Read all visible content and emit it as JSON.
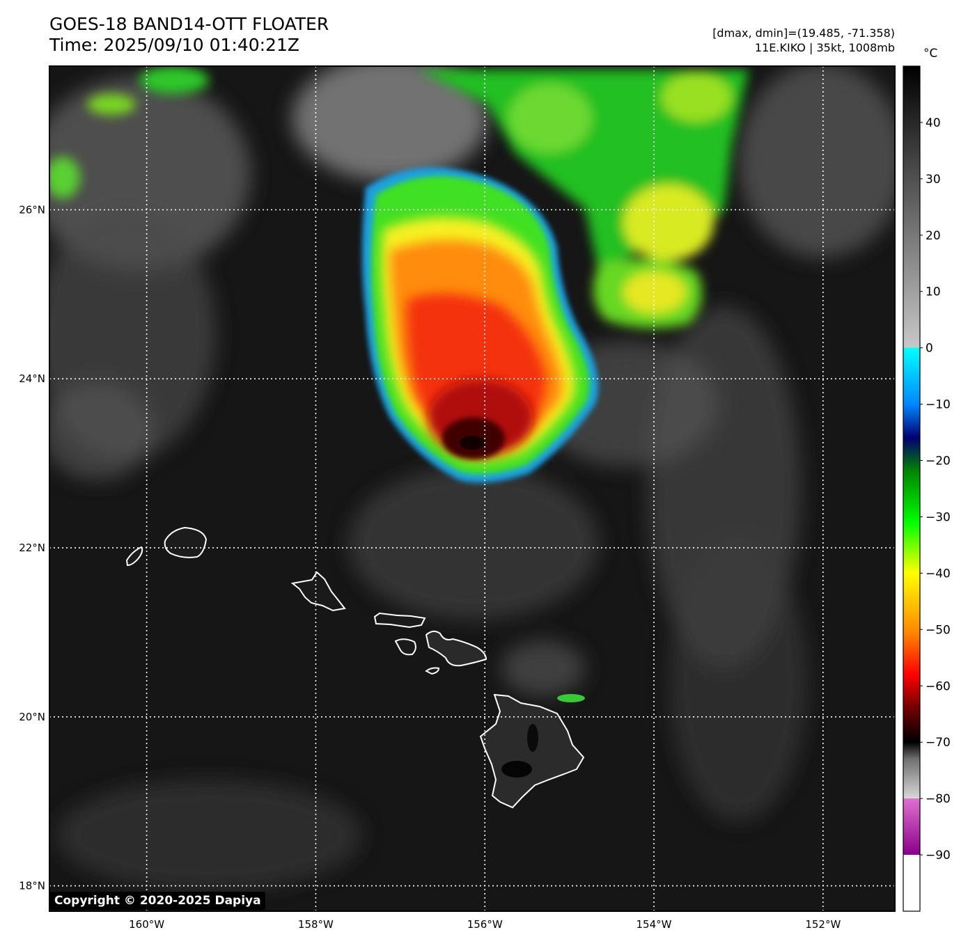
{
  "header": {
    "title_line1": "GOES-18 BAND14-OTT FLOATER",
    "title_line2": "Time: 2025/09/10 01:40:21Z",
    "info_line1": "[dmax, dmin]=(19.485, -71.358)",
    "info_line2": "11E.KIKO | 35kt, 1008mb"
  },
  "map": {
    "lon_range": [
      -161.15,
      -151.15
    ],
    "lat_range": [
      17.7,
      27.7
    ],
    "lon_ticks": [
      -160,
      -158,
      -156,
      -154,
      -152
    ],
    "lat_ticks": [
      18,
      20,
      22,
      24,
      26
    ],
    "lon_labels": [
      "160°W",
      "158°W",
      "156°W",
      "154°W",
      "152°W"
    ],
    "lat_labels": [
      "18°N",
      "20°N",
      "22°N",
      "24°N",
      "26°N"
    ],
    "grid": true
  },
  "colorbar": {
    "unit": "°C",
    "range": [
      -100,
      50
    ],
    "ticks": [
      40,
      30,
      20,
      10,
      0,
      -10,
      -20,
      -30,
      -40,
      -50,
      -60,
      -70,
      -80,
      -90
    ],
    "tick_labels": [
      "40",
      "30",
      "20",
      "10",
      "0",
      "−10",
      "−20",
      "−30",
      "−40",
      "−50",
      "−60",
      "−70",
      "−80",
      "−90"
    ]
  },
  "copyright": "Copyright © 2020-2025 Dapiya",
  "colors": {
    "background_sea": "#161616",
    "coastline": "#ffffff",
    "grid": "#ffffff"
  }
}
